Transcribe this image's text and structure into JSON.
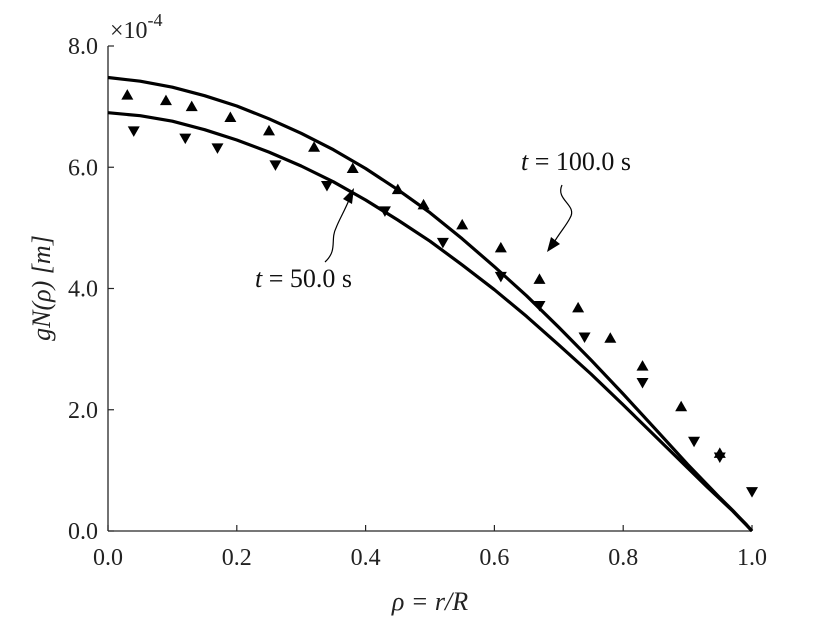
{
  "chart_data": {
    "type": "line",
    "xlabel": "ρ = r/R",
    "ylabel": "gN(ρ) [m]",
    "y_multiplier_label": "×10",
    "y_multiplier_exponent": "-4",
    "xlim": [
      0,
      1
    ],
    "ylim": [
      0,
      8
    ],
    "x_ticks": [
      "0.0",
      "0.2",
      "0.4",
      "0.6",
      "0.8",
      "1.0"
    ],
    "y_ticks": [
      "0.0",
      "2.0",
      "4.0",
      "6.0",
      "8.0"
    ],
    "grid": false,
    "series": [
      {
        "name": "t = 100.0 s",
        "kind": "line",
        "color": "#000000",
        "x": [
          0,
          0.05,
          0.1,
          0.15,
          0.2,
          0.25,
          0.3,
          0.35,
          0.4,
          0.45,
          0.5,
          0.55,
          0.6,
          0.65,
          0.7,
          0.75,
          0.8,
          0.85,
          0.9,
          0.93,
          0.95,
          0.97,
          0.98,
          0.99,
          1.0
        ],
        "y": [
          7.48,
          7.42,
          7.32,
          7.18,
          7.01,
          6.8,
          6.56,
          6.29,
          5.98,
          5.63,
          5.25,
          4.82,
          4.36,
          3.88,
          3.36,
          2.82,
          2.26,
          1.68,
          1.1,
          0.77,
          0.55,
          0.34,
          0.23,
          0.12,
          0.0
        ]
      },
      {
        "name": "t = 50.0 s",
        "kind": "line",
        "color": "#000000",
        "x": [
          0,
          0.05,
          0.1,
          0.15,
          0.2,
          0.25,
          0.3,
          0.35,
          0.4,
          0.45,
          0.5,
          0.55,
          0.6,
          0.65,
          0.7,
          0.75,
          0.8,
          0.85,
          0.9,
          0.93,
          0.95,
          0.97,
          0.98,
          0.99,
          1.0
        ],
        "y": [
          6.9,
          6.85,
          6.76,
          6.62,
          6.45,
          6.25,
          6.02,
          5.76,
          5.46,
          5.13,
          4.78,
          4.39,
          3.98,
          3.54,
          3.07,
          2.59,
          2.08,
          1.56,
          1.04,
          0.73,
          0.53,
          0.33,
          0.22,
          0.11,
          0.0
        ]
      },
      {
        "name": "t = 100.0 s data",
        "kind": "marker-up",
        "color": "#000000",
        "x": [
          0.03,
          0.09,
          0.13,
          0.19,
          0.25,
          0.32,
          0.38,
          0.45,
          0.49,
          0.55,
          0.61,
          0.67,
          0.73,
          0.78,
          0.83,
          0.89,
          0.95
        ],
        "y": [
          7.19,
          7.1,
          7.0,
          6.82,
          6.6,
          6.33,
          5.98,
          5.63,
          5.38,
          5.05,
          4.67,
          4.15,
          3.68,
          3.18,
          2.72,
          2.05,
          1.28
        ]
      },
      {
        "name": "t = 50.0 s data",
        "kind": "marker-down",
        "color": "#000000",
        "x": [
          0.04,
          0.12,
          0.17,
          0.26,
          0.34,
          0.43,
          0.52,
          0.61,
          0.67,
          0.74,
          0.83,
          0.91,
          0.95,
          1.0
        ],
        "y": [
          6.6,
          6.48,
          6.32,
          6.04,
          5.7,
          5.28,
          4.76,
          4.2,
          3.72,
          3.2,
          2.45,
          1.48,
          1.22,
          0.65
        ]
      }
    ],
    "annotations": [
      {
        "text": "t = 100.0 s",
        "italic_part": "t",
        "rest": " = 100.0 s"
      },
      {
        "text": "t = 50.0 s",
        "italic_part": "t",
        "rest": " = 50.0 s"
      }
    ]
  }
}
